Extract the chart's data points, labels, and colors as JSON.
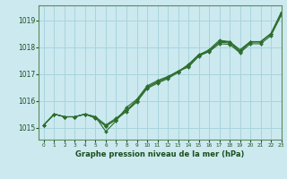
{
  "title": "Graphe pression niveau de la mer (hPa)",
  "bg_color": "#cce9f0",
  "grid_color": "#a8d4dc",
  "line_color": "#2d6e2d",
  "text_color": "#1a4f1a",
  "xlim": [
    -0.5,
    23
  ],
  "ylim": [
    1014.55,
    1019.55
  ],
  "yticks": [
    1015,
    1016,
    1017,
    1018,
    1019
  ],
  "xtick_labels": [
    "0",
    "1",
    "2",
    "3",
    "4",
    "5",
    "6",
    "7",
    "8",
    "9",
    "10",
    "11",
    "12",
    "13",
    "14",
    "15",
    "16",
    "17",
    "18",
    "19",
    "20",
    "21",
    "22",
    "23"
  ],
  "series": [
    [
      1015.1,
      1015.5,
      1015.4,
      1015.4,
      1015.5,
      1015.4,
      1015.1,
      1015.35,
      1015.65,
      1016.0,
      1016.5,
      1016.7,
      1016.85,
      1017.1,
      1017.25,
      1017.65,
      1017.85,
      1018.2,
      1018.2,
      1017.85,
      1018.2,
      1018.2,
      1018.5,
      1019.25
    ],
    [
      1015.1,
      1015.5,
      1015.4,
      1015.4,
      1015.5,
      1015.4,
      1014.85,
      1015.25,
      1015.75,
      1016.05,
      1016.55,
      1016.75,
      1016.9,
      1017.1,
      1017.3,
      1017.7,
      1017.9,
      1018.25,
      1018.2,
      1017.9,
      1018.2,
      1018.2,
      1018.5,
      1019.3
    ],
    [
      1015.1,
      1015.5,
      1015.4,
      1015.4,
      1015.5,
      1015.35,
      1015.05,
      1015.3,
      1015.65,
      1016.0,
      1016.5,
      1016.7,
      1016.88,
      1017.08,
      1017.35,
      1017.72,
      1017.85,
      1018.18,
      1018.15,
      1017.82,
      1018.18,
      1018.18,
      1018.48,
      1019.22
    ],
    [
      1015.1,
      1015.5,
      1015.4,
      1015.4,
      1015.5,
      1015.35,
      1015.05,
      1015.3,
      1015.6,
      1015.95,
      1016.45,
      1016.65,
      1016.82,
      1017.05,
      1017.32,
      1017.68,
      1017.82,
      1018.12,
      1018.1,
      1017.78,
      1018.12,
      1018.12,
      1018.42,
      1019.18
    ]
  ]
}
